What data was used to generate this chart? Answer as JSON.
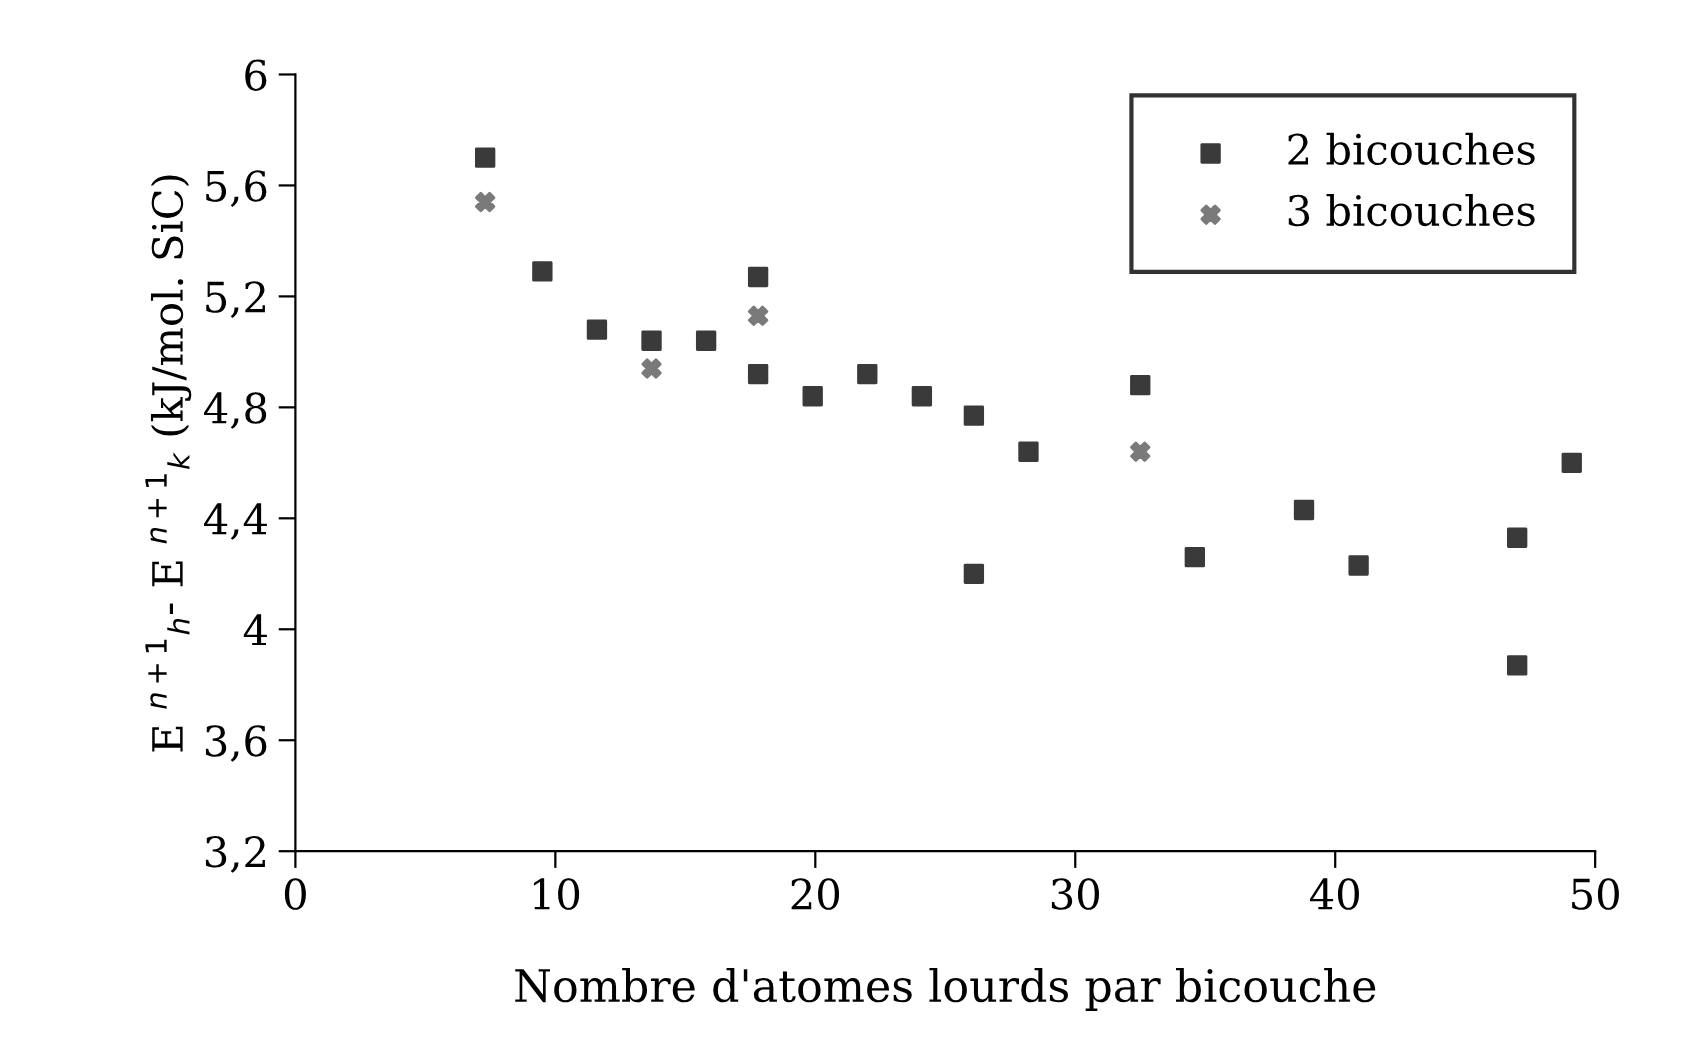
{
  "chart_data": {
    "type": "scatter",
    "xlabel": "Nombre d'atomes lourds par bicouche",
    "ylabel": "E $^{n+1}$$_{h}$- E $^{n+1}$$_{k}$ (kJ/mol. SiC)",
    "xlim": [
      0,
      50
    ],
    "xticks": [
      0,
      10,
      20,
      30,
      40,
      50
    ],
    "ylim": [
      3.2,
      6
    ],
    "yticks": [
      {
        "value": 3.2,
        "label": "3,2"
      },
      {
        "value": 3.6,
        "label": "3,6"
      },
      4,
      {
        "value": 4.4,
        "label": "4,4"
      },
      {
        "value": 4.8,
        "label": "4,8"
      },
      {
        "value": 5.2,
        "label": "5,2"
      },
      {
        "value": 5.6,
        "label": "5,6"
      },
      6
    ],
    "grid": false,
    "legend": "top right",
    "series": [
      {
        "name": "2 bicouches",
        "color": "#3a3a3a",
        "marker": "square",
        "x": [
          7.3,
          9.5,
          11.6,
          13.7,
          15.8,
          17.8,
          17.8,
          19.9,
          22,
          24.1,
          26.1,
          26.1,
          28.2,
          32.5,
          34.6,
          38.8,
          40.9,
          47,
          47,
          49.1
        ],
        "values": [
          5.7,
          5.29,
          5.08,
          5.04,
          5.04,
          5.27,
          4.92,
          4.84,
          4.92,
          4.84,
          4.77,
          4.2,
          4.64,
          4.88,
          4.26,
          4.43,
          4.23,
          4.33,
          3.87,
          4.6
        ]
      },
      {
        "name": "3 bicouches",
        "color": "#7a7a7a",
        "marker": "cross",
        "x": [
          7.3,
          13.7,
          17.8,
          32.5
        ],
        "values": [
          5.54,
          4.94,
          5.13,
          4.64
        ]
      }
    ]
  }
}
